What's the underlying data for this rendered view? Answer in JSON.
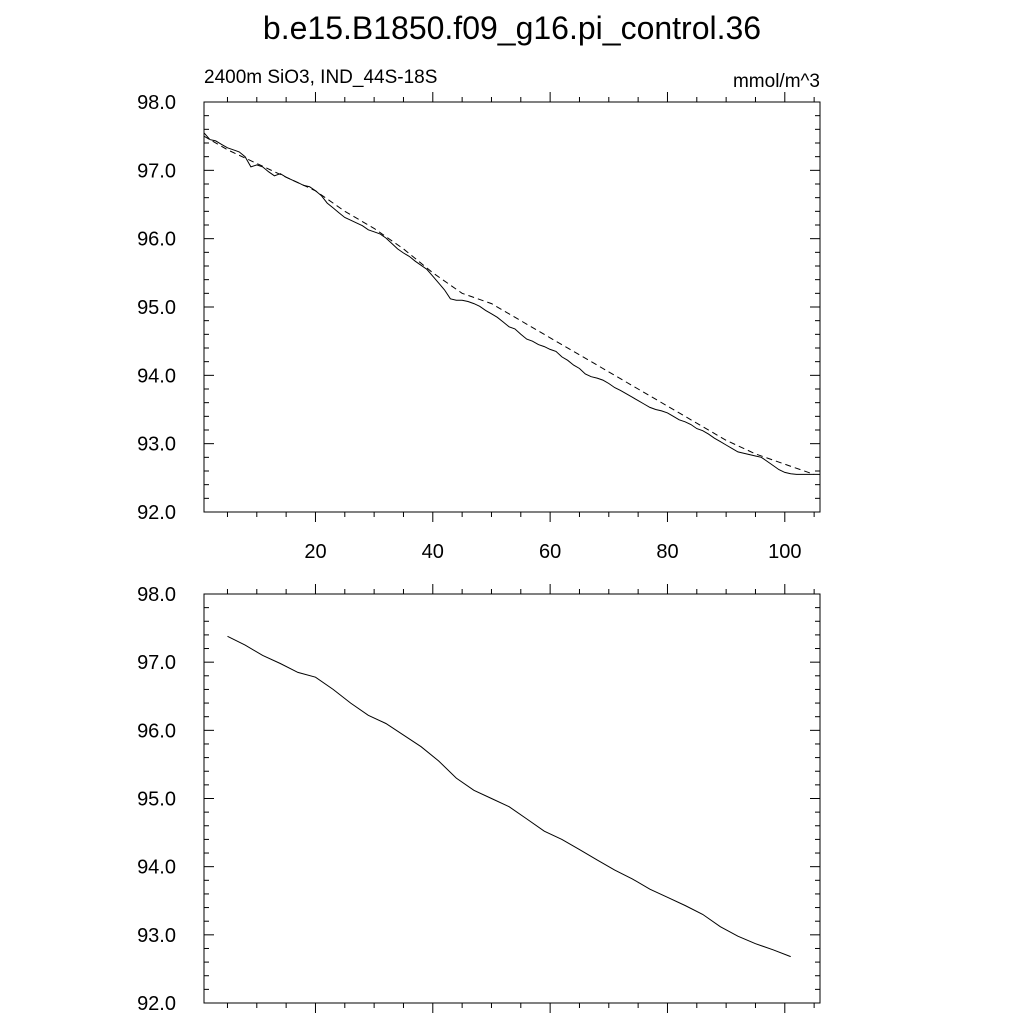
{
  "title": "b.e15.B1850.f09_g16.pi_control.36",
  "subtitle_left": "2400m SiO3, IND_44S-18S",
  "subtitle_right": "mmol/m^3",
  "colors": {
    "line": "#000000",
    "frame": "#000000",
    "background": "#ffffff"
  },
  "chart_data": [
    {
      "type": "line",
      "title": "b.e15.B1850.f09_g16.pi_control.36",
      "subtitle_left": "2400m SiO3, IND_44S-18S",
      "units": "mmol/m^3",
      "xlim": [
        1,
        106
      ],
      "ylim": [
        92.0,
        98.0
      ],
      "x_ticks": [
        20,
        40,
        60,
        80,
        100
      ],
      "x_tick_labels": [
        "20",
        "40",
        "60",
        "80",
        "100"
      ],
      "y_ticks": [
        92,
        93,
        94,
        95,
        96,
        97,
        98
      ],
      "y_tick_labels": [
        "92.0",
        "93.0",
        "94.0",
        "95.0",
        "96.0",
        "97.0",
        "98.0"
      ],
      "grid": false,
      "series": [
        {
          "style": "solid",
          "x": [
            1,
            2,
            3,
            4,
            5,
            6,
            7,
            8,
            9,
            10,
            11,
            12,
            13,
            14,
            15,
            16,
            17,
            18,
            19,
            20,
            21,
            22,
            23,
            24,
            25,
            26,
            27,
            28,
            29,
            30,
            31,
            32,
            33,
            34,
            35,
            36,
            37,
            38,
            39,
            40,
            41,
            42,
            43,
            44,
            45,
            46,
            47,
            48,
            49,
            50,
            51,
            52,
            53,
            54,
            55,
            56,
            57,
            58,
            59,
            60,
            61,
            62,
            63,
            64,
            65,
            66,
            67,
            68,
            69,
            70,
            71,
            72,
            73,
            74,
            75,
            76,
            77,
            78,
            79,
            80,
            81,
            82,
            83,
            84,
            85,
            86,
            87,
            88,
            89,
            90,
            91,
            92,
            93,
            94,
            95,
            96,
            97,
            98,
            99,
            100,
            101,
            102,
            103,
            104,
            105,
            106
          ],
          "y": [
            97.55,
            97.45,
            97.43,
            97.38,
            97.33,
            97.3,
            97.27,
            97.2,
            97.05,
            97.08,
            97.05,
            96.98,
            96.92,
            96.95,
            96.9,
            96.86,
            96.82,
            96.78,
            96.76,
            96.7,
            96.63,
            96.52,
            96.45,
            96.38,
            96.31,
            96.27,
            96.23,
            96.19,
            96.13,
            96.1,
            96.07,
            96.01,
            95.93,
            95.85,
            95.79,
            95.74,
            95.67,
            95.61,
            95.55,
            95.45,
            95.35,
            95.25,
            95.12,
            95.1,
            95.1,
            95.08,
            95.05,
            95.01,
            94.95,
            94.9,
            94.85,
            94.78,
            94.71,
            94.68,
            94.6,
            94.53,
            94.5,
            94.45,
            94.42,
            94.38,
            94.35,
            94.27,
            94.22,
            94.15,
            94.1,
            94.02,
            93.98,
            93.96,
            93.93,
            93.88,
            93.82,
            93.78,
            93.73,
            93.68,
            93.63,
            93.58,
            93.53,
            93.5,
            93.48,
            93.45,
            93.4,
            93.35,
            93.32,
            93.28,
            93.22,
            93.19,
            93.14,
            93.08,
            93.03,
            92.98,
            92.93,
            92.88,
            92.86,
            92.84,
            92.82,
            92.8,
            92.74,
            92.68,
            92.62,
            92.58,
            92.56,
            92.55,
            92.55,
            92.55,
            92.55,
            92.55
          ]
        },
        {
          "style": "dashed",
          "x": [
            1,
            5,
            10,
            15,
            20,
            25,
            30,
            35,
            40,
            45,
            50,
            55,
            60,
            65,
            70,
            75,
            80,
            85,
            90,
            95,
            100,
            105
          ],
          "y": [
            97.5,
            97.3,
            97.1,
            96.9,
            96.7,
            96.4,
            96.15,
            95.85,
            95.5,
            95.2,
            95.05,
            94.8,
            94.55,
            94.3,
            94.05,
            93.8,
            93.55,
            93.3,
            93.05,
            92.85,
            92.7,
            92.55
          ]
        }
      ]
    },
    {
      "type": "line",
      "xlim": [
        1,
        106
      ],
      "ylim": [
        92.0,
        98.0
      ],
      "y_ticks": [
        92,
        93,
        94,
        95,
        96,
        97,
        98
      ],
      "y_tick_labels": [
        "92.0",
        "93.0",
        "94.0",
        "95.0",
        "96.0",
        "97.0",
        "98.0"
      ],
      "grid": false,
      "series": [
        {
          "style": "solid",
          "x": [
            5,
            8,
            11,
            14,
            17,
            20,
            23,
            26,
            29,
            32,
            35,
            38,
            41,
            44,
            47,
            50,
            53,
            56,
            59,
            62,
            65,
            68,
            71,
            74,
            77,
            80,
            83,
            86,
            89,
            92,
            95,
            98,
            101
          ],
          "y": [
            97.38,
            97.25,
            97.1,
            96.98,
            96.85,
            96.78,
            96.6,
            96.4,
            96.22,
            96.1,
            95.93,
            95.76,
            95.55,
            95.3,
            95.12,
            95.0,
            94.88,
            94.7,
            94.52,
            94.4,
            94.25,
            94.1,
            93.95,
            93.82,
            93.67,
            93.55,
            93.43,
            93.3,
            93.12,
            92.98,
            92.87,
            92.78,
            92.68
          ]
        }
      ]
    }
  ]
}
